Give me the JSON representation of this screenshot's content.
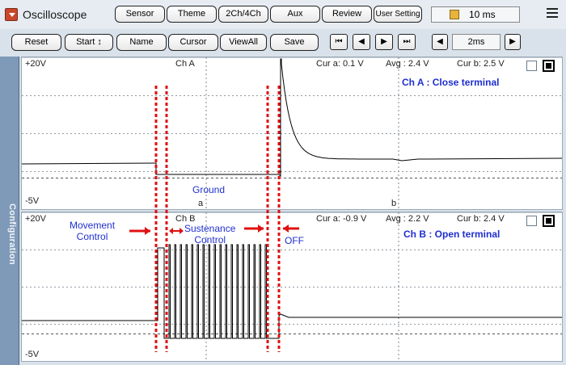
{
  "app": {
    "title": "Oscilloscope"
  },
  "toolbar_top": {
    "buttons": [
      "Sensor",
      "Theme",
      "2Ch/4Ch",
      "Aux",
      "Review",
      "User Setting"
    ],
    "time_per_div": "10 ms"
  },
  "toolbar_bottom": {
    "reset": "Reset",
    "start": "Start",
    "start_arrows": "↕",
    "name": "Name",
    "cursor": "Cursor",
    "viewall": "ViewAll",
    "save": "Save",
    "nav": [
      "⏮",
      "◀",
      "▶",
      "⏭"
    ],
    "div_prev": "◀",
    "div_value": "2ms",
    "div_next": "▶"
  },
  "sidebar": {
    "label": "Configuration"
  },
  "channel_a": {
    "ymax": "+20V",
    "ymin": "-5V",
    "name": "Ch A",
    "cur_a": "Cur a: 0.1 V",
    "avg": "Avg : 2.4 V",
    "cur_b": "Cur b: 2.5 V",
    "title": "Ch A : Close terminal",
    "marker_a": "a",
    "marker_b": "b"
  },
  "channel_b": {
    "ymax": "+20V",
    "ymin": "-5V",
    "name": "Ch B",
    "cur_a": "Cur a: -0.9 V",
    "avg": "Avg : 2.2 V",
    "cur_b": "Cur b: 2.4 V",
    "title": "Ch B : Open terminal"
  },
  "annotations": {
    "ground": "Ground",
    "movement_line1": "Movement",
    "movement_line2": "Control",
    "sustenance_line1": "Sustenance",
    "sustenance_line2": "Control",
    "off": "OFF"
  },
  "colors": {
    "trace": "#000000",
    "marker": "#e01010",
    "annotation": "#1f2fd0",
    "sidebar": "#7f9ab8"
  },
  "icons": [
    "dropdown-icon",
    "time-icon",
    "menu-icon",
    "checkbox-icon",
    "channel-toggle-icon"
  ]
}
